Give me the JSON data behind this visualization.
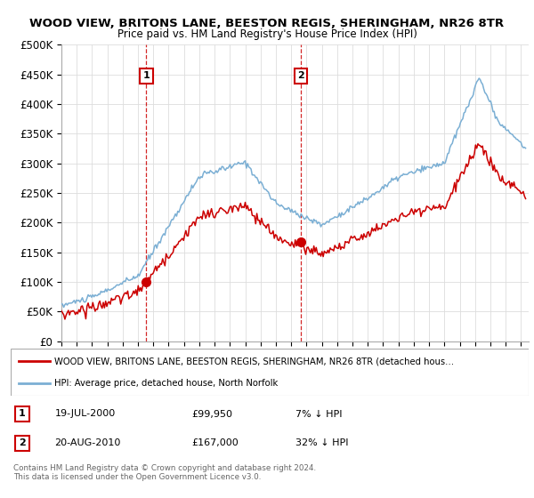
{
  "title": "WOOD VIEW, BRITONS LANE, BEESTON REGIS, SHERINGHAM, NR26 8TR",
  "subtitle": "Price paid vs. HM Land Registry's House Price Index (HPI)",
  "ylabel_ticks": [
    "£0",
    "£50K",
    "£100K",
    "£150K",
    "£200K",
    "£250K",
    "£300K",
    "£350K",
    "£400K",
    "£450K",
    "£500K"
  ],
  "ytick_values": [
    0,
    50000,
    100000,
    150000,
    200000,
    250000,
    300000,
    350000,
    400000,
    450000,
    500000
  ],
  "ylim": [
    0,
    500000
  ],
  "hpi_color": "#7bafd4",
  "price_color": "#cc0000",
  "marker_color": "#cc0000",
  "purchase1_x": 2000.54,
  "purchase1_y": 99950,
  "purchase1_label": "19-JUL-2000",
  "purchase1_price": "£99,950",
  "purchase1_hpi": "7% ↓ HPI",
  "purchase2_x": 2010.63,
  "purchase2_y": 167000,
  "purchase2_label": "20-AUG-2010",
  "purchase2_price": "£167,000",
  "purchase2_hpi": "32% ↓ HPI",
  "legend_line1": "WOOD VIEW, BRITONS LANE, BEESTON REGIS, SHERINGHAM, NR26 8TR (detached hous…",
  "legend_line2": "HPI: Average price, detached house, North Norfolk",
  "footnote": "Contains HM Land Registry data © Crown copyright and database right 2024.\nThis data is licensed under the Open Government Licence v3.0.",
  "xmin": 1995.0,
  "xmax": 2025.5,
  "background_color": "#ffffff",
  "grid_color": "#dddddd",
  "annotation_box_color": "#cc0000"
}
